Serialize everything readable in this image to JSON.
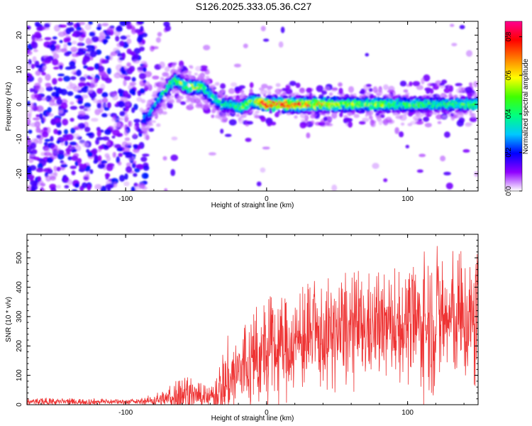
{
  "title": "S126.2025.333.05.36.C27",
  "chart_data": [
    {
      "type": "heatmap",
      "xlabel": "Height of straight line (km)",
      "ylabel": "Frequency (Hz)",
      "xlim": [
        -170,
        150
      ],
      "ylim": [
        -25,
        24
      ],
      "xticks": [
        -100,
        0,
        100
      ],
      "yticks": [
        -20,
        -10,
        0,
        10,
        20
      ],
      "colorbar": {
        "label": "Normalized spectral amplitude",
        "range": [
          0.0,
          0.88
        ],
        "ticks": [
          0.0,
          0.2,
          0.4,
          0.6,
          0.8
        ],
        "colormap": "rainbow",
        "colors": [
          "#ffffff",
          "#9000ff",
          "#0000ff",
          "#00c8ff",
          "#00ff80",
          "#40ff00",
          "#ffff00",
          "#ff8000",
          "#ff0000",
          "#ff0090"
        ]
      },
      "ridge": {
        "x": [
          -85,
          -75,
          -65,
          -55,
          -45,
          -38,
          -32,
          -25,
          -18,
          -10,
          0,
          25,
          50,
          75,
          100,
          125,
          150
        ],
        "frequency": [
          -4,
          2,
          7,
          5,
          5,
          2,
          0,
          0,
          -1,
          1,
          0,
          0,
          0,
          0,
          0,
          0,
          0
        ],
        "amplitude": [
          0.3,
          0.4,
          0.5,
          0.6,
          0.55,
          0.45,
          0.45,
          0.4,
          0.5,
          0.55,
          0.85,
          0.8,
          0.6,
          0.55,
          0.5,
          0.45,
          0.5
        ]
      }
    },
    {
      "type": "line",
      "xlabel": "Height of straight line (km)",
      "ylabel": "SNR (10 * v/v)",
      "xlim": [
        -170,
        150
      ],
      "ylim": [
        0,
        580
      ],
      "xticks": [
        -100,
        0,
        100
      ],
      "yticks": [
        0,
        100,
        200,
        300,
        400,
        500
      ],
      "color": "#ee3333",
      "envelope": {
        "x": [
          -170,
          -90,
          -70,
          -60,
          -50,
          -40,
          -30,
          -20,
          -10,
          0,
          20,
          40,
          60,
          80,
          100,
          120,
          130,
          150
        ],
        "mean": [
          10,
          10,
          20,
          40,
          30,
          20,
          70,
          110,
          140,
          170,
          210,
          230,
          250,
          260,
          270,
          280,
          290,
          270
        ],
        "max": [
          25,
          20,
          60,
          130,
          80,
          60,
          220,
          280,
          320,
          380,
          400,
          430,
          470,
          450,
          480,
          580,
          520,
          560
        ]
      }
    }
  ]
}
